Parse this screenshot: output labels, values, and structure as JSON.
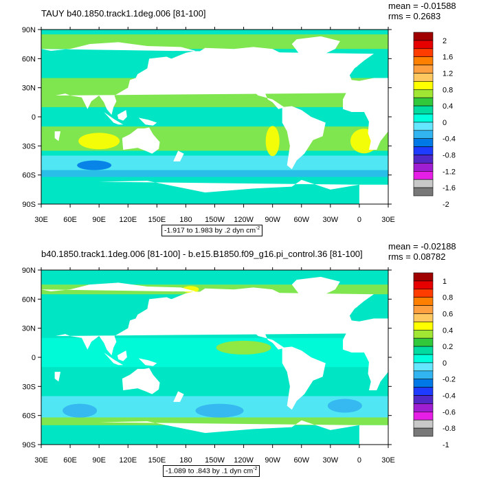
{
  "panels": [
    {
      "title": "TAUY b40.1850.track1.1deg.006 [81-100]",
      "mean": "mean = -0.01588",
      "rms": "rms = 0.2683",
      "range": "-1.917 to 1.983 by .2 dyn cm",
      "range_exp": "-2",
      "colorbar_labels": [
        "2",
        "1.6",
        "1.2",
        "0.8",
        "0.4",
        "0",
        "-0.4",
        "-0.8",
        "-1.2",
        "-1.6",
        "-2"
      ],
      "colorbar_colors": [
        "#a00000",
        "#e60000",
        "#ff3c00",
        "#ff7f00",
        "#ffa040",
        "#ffc860",
        "#ffff00",
        "#a0e632",
        "#32c83c",
        "#00dca0",
        "#00ffdc",
        "#64e6ff",
        "#32b4f0",
        "#0078e6",
        "#1e3cff",
        "#5028c8",
        "#a01ed2",
        "#e61ee6",
        "#c8c8c8",
        "#787878"
      ],
      "ocean_color": "#00e6c4",
      "land_color": "#ffffff"
    },
    {
      "title": "b40.1850.track1.1deg.006 [81-100] - b.e15.B1850.f09_g16.pi_control.36 [81-100]",
      "mean": "mean = -0.02188",
      "rms": "rms = 0.08782",
      "range": "-1.089 to .843 by .1 dyn cm",
      "range_exp": "-2",
      "colorbar_labels": [
        "1",
        "0.8",
        "0.6",
        "0.4",
        "0.2",
        "0",
        "-0.2",
        "-0.4",
        "-0.6",
        "-0.8",
        "-1"
      ],
      "colorbar_colors": [
        "#a00000",
        "#e60000",
        "#ff3c00",
        "#ff7f00",
        "#ffa040",
        "#ffc860",
        "#ffff00",
        "#a0e632",
        "#32c83c",
        "#00dca0",
        "#00ffdc",
        "#64e6ff",
        "#32b4f0",
        "#0078e6",
        "#1e3cff",
        "#5028c8",
        "#a01ed2",
        "#e61ee6",
        "#c8c8c8",
        "#787878"
      ],
      "ocean_color": "#00e6c4",
      "land_color": "#ffffff"
    }
  ],
  "axes": {
    "lat_labels": [
      "90N",
      "60N",
      "30N",
      "0",
      "30S",
      "60S",
      "90S"
    ],
    "lon_labels": [
      "30E",
      "60E",
      "90E",
      "120E",
      "150E",
      "180",
      "150W",
      "120W",
      "90W",
      "60W",
      "30W",
      "0",
      "30E"
    ]
  }
}
